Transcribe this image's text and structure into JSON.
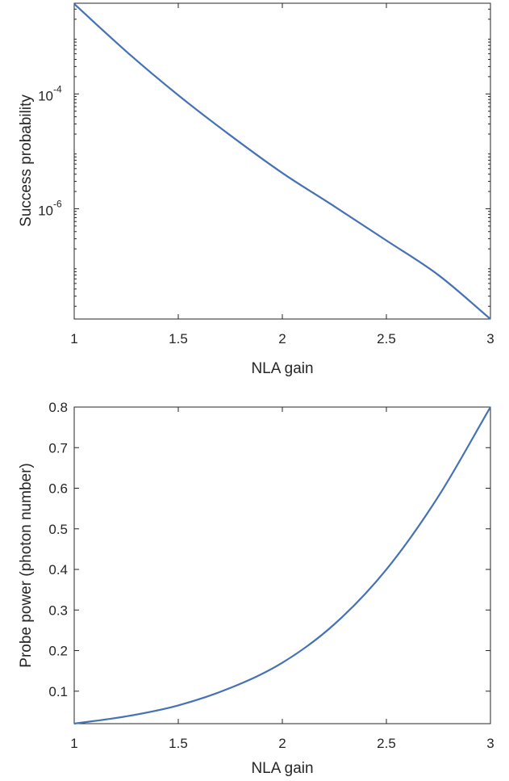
{
  "colors": {
    "series": "#4472b4",
    "axis": "#262626",
    "background": "#ffffff"
  },
  "chart_data": [
    {
      "type": "line",
      "title": "",
      "xlabel": "NLA gain",
      "ylabel": "Success probability",
      "xscale": "linear",
      "yscale": "log",
      "xlim": [
        1,
        3
      ],
      "ylim": [
        1.2e-08,
        0.0038
      ],
      "grid": false,
      "xticks": [
        {
          "value": 1,
          "label": "1"
        },
        {
          "value": 1.5,
          "label": "1.5"
        },
        {
          "value": 2,
          "label": "2"
        },
        {
          "value": 2.5,
          "label": "2.5"
        },
        {
          "value": 3,
          "label": "3"
        }
      ],
      "yticks": [
        {
          "value": 0.0001,
          "base": "10",
          "exp": "-4"
        },
        {
          "value": 1e-06,
          "base": "10",
          "exp": "-6"
        }
      ],
      "series": [
        {
          "x": [
            1,
            1.25,
            1.5,
            1.75,
            2,
            2.25,
            2.5,
            2.75,
            3
          ],
          "y": [
            0.0037,
            0.00055,
            9.5e-05,
            1.9e-05,
            4.2e-06,
            1.1e-06,
            2.8e-07,
            7e-08,
            1.2e-08
          ]
        }
      ]
    },
    {
      "type": "line",
      "title": "",
      "xlabel": "NLA gain",
      "ylabel": "Probe power (photon number)",
      "xscale": "linear",
      "yscale": "linear",
      "xlim": [
        1,
        3
      ],
      "ylim": [
        0.02,
        0.8
      ],
      "grid": false,
      "xticks": [
        {
          "value": 1,
          "label": "1"
        },
        {
          "value": 1.5,
          "label": "1.5"
        },
        {
          "value": 2,
          "label": "2"
        },
        {
          "value": 2.5,
          "label": "2.5"
        },
        {
          "value": 3,
          "label": "3"
        }
      ],
      "yticks": [
        {
          "value": 0.1,
          "label": "0.1"
        },
        {
          "value": 0.2,
          "label": "0.2"
        },
        {
          "value": 0.3,
          "label": "0.3"
        },
        {
          "value": 0.4,
          "label": "0.4"
        },
        {
          "value": 0.5,
          "label": "0.5"
        },
        {
          "value": 0.6,
          "label": "0.6"
        },
        {
          "value": 0.7,
          "label": "0.7"
        },
        {
          "value": 0.8,
          "label": "0.8"
        }
      ],
      "series": [
        {
          "x": [
            1,
            1.25,
            1.5,
            1.75,
            2,
            2.25,
            2.5,
            2.75,
            3
          ],
          "y": [
            0.02,
            0.038,
            0.065,
            0.108,
            0.17,
            0.265,
            0.4,
            0.58,
            0.8
          ]
        }
      ]
    }
  ]
}
